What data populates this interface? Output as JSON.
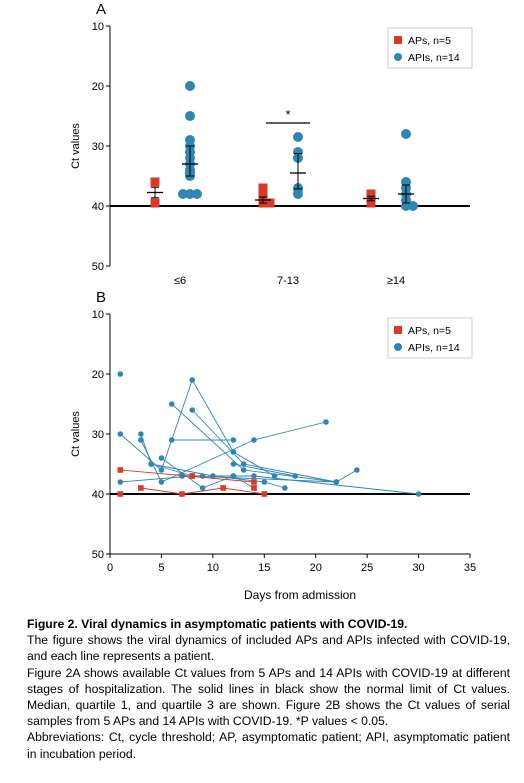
{
  "charts": [
    {
      "panel_label": "A",
      "type": "scatter",
      "ylabel": "Ct values",
      "ylim": [
        50,
        10
      ],
      "yticks": [
        10,
        20,
        30,
        40,
        50
      ],
      "categories": [
        "≤6",
        "7-13",
        "≥14"
      ],
      "reference_line": 40,
      "legend_position": "top-right",
      "significance": [
        {
          "category": "7-13",
          "label": "*"
        }
      ],
      "series": [
        {
          "name": "APs, n=5",
          "color": "#d93a26",
          "marker": "square",
          "groups": [
            [
              36,
              39.5
            ],
            [
              37,
              38.5,
              39,
              39.5,
              39.5
            ],
            [
              38,
              39.5
            ]
          ]
        },
        {
          "name": "APIs, n=14",
          "color": "#2e86b5",
          "marker": "circle",
          "groups": [
            [
              20,
              25,
              29,
              30,
              31,
              32,
              33,
              34,
              34.5,
              35,
              38,
              38,
              38
            ],
            [
              28.5,
              31,
              32,
              37,
              37.2,
              38
            ],
            [
              28,
              36,
              37,
              38,
              39,
              40,
              40
            ]
          ]
        }
      ]
    },
    {
      "panel_label": "B",
      "type": "line",
      "ylabel": "Ct values",
      "xlabel": "Days from admission",
      "ylim": [
        50,
        10
      ],
      "yticks": [
        10,
        20,
        30,
        40,
        50
      ],
      "xlim": [
        0,
        35
      ],
      "xticks": [
        0,
        5,
        10,
        15,
        20,
        25,
        30,
        35
      ],
      "reference_line": 40,
      "legend_position": "top-right",
      "series": [
        {
          "name": "APs, n=5",
          "color": "#d93a26",
          "marker": "square",
          "patients": [
            [
              [
                1,
                36
              ],
              [
                14,
                38
              ]
            ],
            [
              [
                1,
                40
              ]
            ],
            [
              [
                3,
                39
              ],
              [
                7,
                40
              ],
              [
                11,
                39
              ],
              [
                15,
                40
              ]
            ],
            [
              [
                8,
                37
              ]
            ],
            [
              [
                14,
                39
              ]
            ]
          ]
        },
        {
          "name": "APIs, n=14",
          "color": "#2e86b5",
          "marker": "circle",
          "patients": [
            [
              [
                1,
                20
              ]
            ],
            [
              [
                1,
                30
              ],
              [
                5,
                36
              ],
              [
                8,
                21
              ],
              [
                12,
                33
              ],
              [
                16,
                37
              ]
            ],
            [
              [
                1,
                38
              ],
              [
                8,
                37
              ],
              [
                22,
                38
              ]
            ],
            [
              [
                3,
                30
              ],
              [
                4,
                35
              ],
              [
                10,
                37
              ],
              [
                14,
                37
              ],
              [
                30,
                40
              ]
            ],
            [
              [
                3,
                31
              ],
              [
                5,
                38
              ],
              [
                14,
                31
              ],
              [
                21,
                28
              ]
            ],
            [
              [
                5,
                34
              ],
              [
                9,
                39
              ],
              [
                12,
                37
              ]
            ],
            [
              [
                6,
                25
              ],
              [
                13,
                36
              ],
              [
                22,
                38
              ]
            ],
            [
              [
                6,
                31
              ],
              [
                12,
                31
              ]
            ],
            [
              [
                7,
                37
              ],
              [
                9,
                37
              ]
            ],
            [
              [
                8,
                26
              ],
              [
                13,
                35
              ],
              [
                22,
                38
              ],
              [
                24,
                36
              ]
            ],
            [
              [
                10,
                37
              ],
              [
                15,
                38
              ],
              [
                17,
                39
              ]
            ],
            [
              [
                12,
                35
              ],
              [
                18,
                37
              ]
            ],
            [
              [
                4,
                35
              ],
              [
                8,
                37
              ]
            ],
            [
              [
                12,
                37
              ],
              [
                14,
                39
              ]
            ]
          ]
        }
      ]
    }
  ],
  "caption": {
    "title": "Figure 2.  Viral dynamics in asymptomatic patients with COVID-19.",
    "paragraphs": [
      "The figure shows the viral dynamics of included APs and APIs infected with COVID-19, and each line represents a patient.",
      "Figure 2A shows available Ct values from 5 APs and 14 APIs with COVID-19 at different stages of hospitalization. The solid lines in black show the normal limit of Ct values. Median, quartile 1, and quartile 3 are shown. Figure 2B shows the Ct values of serial samples from 5 APs and 14 APIs with COVID-19. *P values < 0.05.",
      "Abbreviations: Ct, cycle threshold; AP, asymptomatic patient; API, asymptomatic patient in incubation period."
    ]
  }
}
